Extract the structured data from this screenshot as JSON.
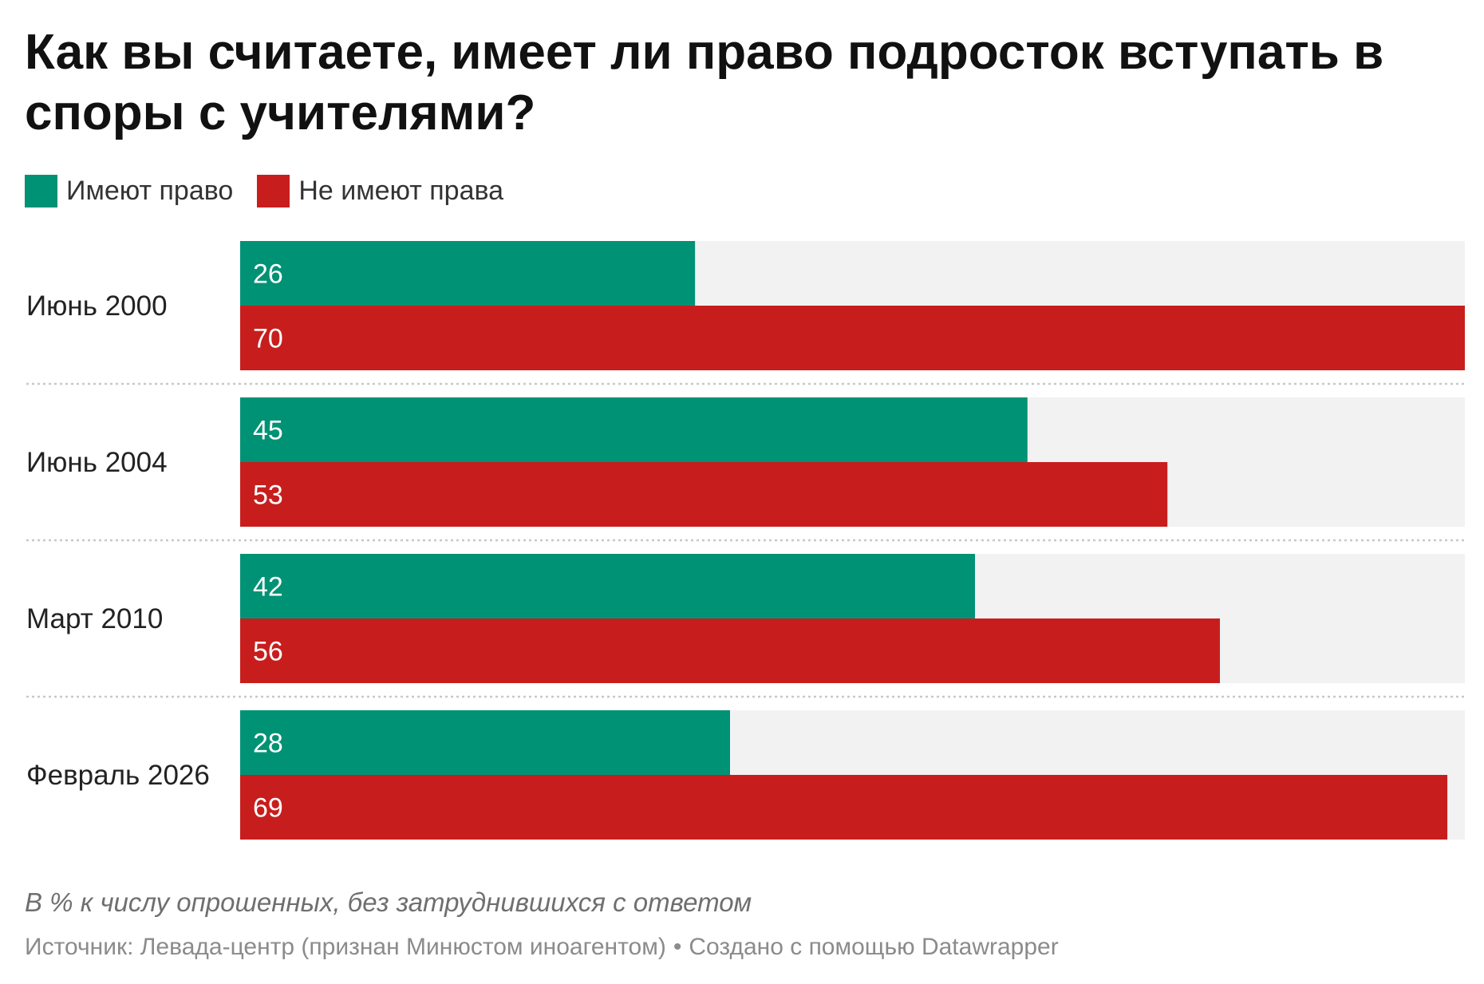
{
  "chart_data": {
    "type": "bar",
    "orientation": "horizontal",
    "title": "Как вы считаете, имеет ли право подросток вступать в споры с учителями?",
    "categories": [
      "Июнь 2000",
      "Июнь 2004",
      "Март 2010",
      "Февраль 2026"
    ],
    "series": [
      {
        "name": "Имеют право",
        "color": "#009274",
        "values": [
          26,
          45,
          42,
          28
        ]
      },
      {
        "name": "Не имеют права",
        "color": "#c71e1d",
        "values": [
          70,
          53,
          56,
          69
        ]
      }
    ],
    "xlim": [
      0,
      70
    ],
    "legend_position": "top-left",
    "grid": false,
    "value_labels": "inside-left",
    "background_track_color": "#f2f2f2",
    "notes": "В % к числу опрошенных, без затруднившихся с ответом"
  },
  "footer": {
    "source": "Источник: Левада-центр (признан Минюстом иноагентом)",
    "separator": "•",
    "credit": "Создано с помощью Datawrapper"
  }
}
